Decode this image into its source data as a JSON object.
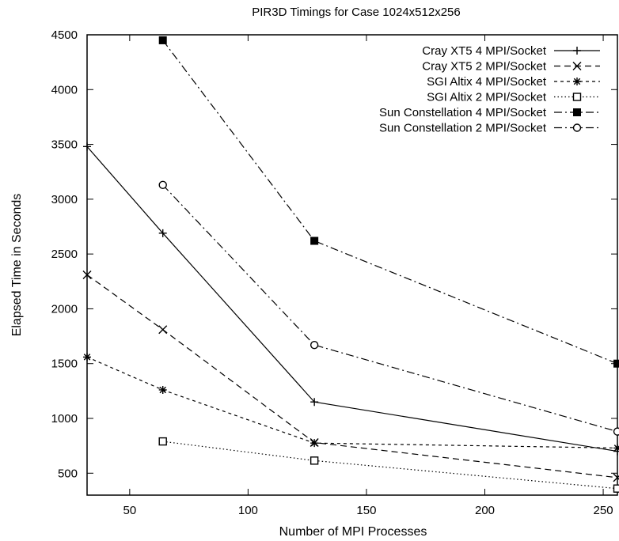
{
  "chart_data": {
    "type": "line",
    "title": "PIR3D Timings for Case 1024x512x256",
    "xlabel": "Number of MPI Processes",
    "ylabel": "Elapsed Time in Seconds",
    "xlim": [
      32,
      256
    ],
    "ylim": [
      300,
      4500
    ],
    "xticks": [
      50,
      100,
      150,
      200,
      250
    ],
    "yticks": [
      500,
      1000,
      1500,
      2000,
      2500,
      3000,
      3500,
      4000,
      4500
    ],
    "grid": false,
    "legend_position": "top-right",
    "series": [
      {
        "name": "Cray XT5 4 MPI/Socket",
        "marker": "plus",
        "dash": "solid",
        "points": [
          [
            32,
            3480
          ],
          [
            64,
            2690
          ],
          [
            128,
            1150
          ],
          [
            256,
            700
          ]
        ]
      },
      {
        "name": "Cray XT5 2 MPI/Socket",
        "marker": "cross",
        "dash": "dashed",
        "points": [
          [
            32,
            2310
          ],
          [
            64,
            1810
          ],
          [
            128,
            780
          ],
          [
            256,
            460
          ]
        ]
      },
      {
        "name": "SGI Altix 4 MPI/Socket",
        "marker": "star",
        "dash": "short-dashed",
        "points": [
          [
            32,
            1560
          ],
          [
            64,
            1260
          ],
          [
            128,
            775
          ],
          [
            256,
            730
          ]
        ]
      },
      {
        "name": "SGI Altix 2 MPI/Socket",
        "marker": "open-square",
        "dash": "dotted",
        "points": [
          [
            64,
            790
          ],
          [
            128,
            615
          ],
          [
            256,
            360
          ]
        ]
      },
      {
        "name": "Sun Constellation 4 MPI/Socket",
        "marker": "filled-square",
        "dash": "dash-dot",
        "points": [
          [
            64,
            4450
          ],
          [
            128,
            2620
          ],
          [
            256,
            1500
          ]
        ]
      },
      {
        "name": "Sun Constellation 2 MPI/Socket",
        "marker": "open-circle",
        "dash": "dash-dot",
        "points": [
          [
            64,
            3130
          ],
          [
            128,
            1670
          ],
          [
            256,
            880
          ]
        ]
      }
    ]
  }
}
